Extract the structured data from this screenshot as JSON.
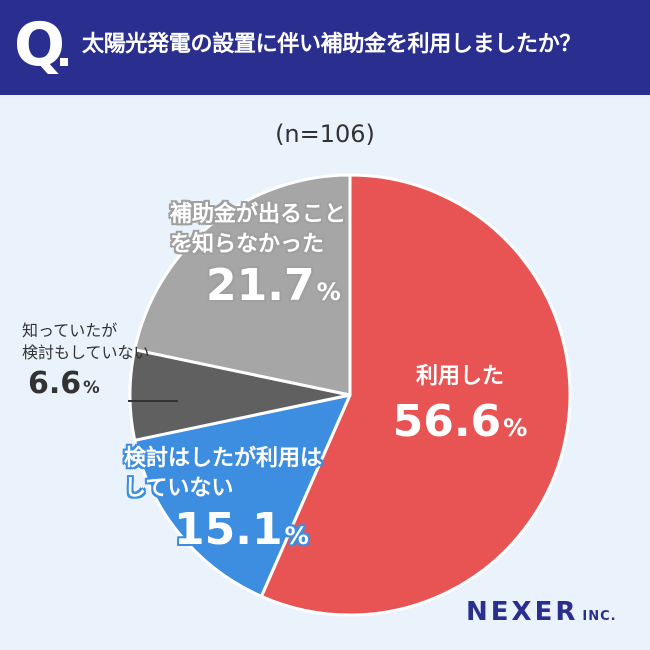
{
  "header": {
    "q_mark": "Q",
    "question": "太陽光発電の設置に伴い補助金を利用しましたか？"
  },
  "chart_data": {
    "type": "pie",
    "sample_size": "(n=106)",
    "slices": [
      {
        "label": "利用した",
        "value": 56.6,
        "value_text": "56.6",
        "color": "#e85453"
      },
      {
        "label": "検討はしたが利用はしていない",
        "value": 15.1,
        "value_text": "15.1",
        "color": "#3d8de0"
      },
      {
        "label": "知っていたが検討もしていない",
        "value": 6.6,
        "value_text": "6.6",
        "color": "#5f605f"
      },
      {
        "label": "補助金が出ることを知らなかった",
        "value": 21.7,
        "value_text": "21.7",
        "color": "#a6a6a6"
      }
    ],
    "unit": "%"
  },
  "label_lines": {
    "s0": [
      "利用した"
    ],
    "s1": [
      "検討はしたが利用は",
      "していない"
    ],
    "s2": [
      "知っていたが",
      "検討もしていない"
    ],
    "s3": [
      "補助金が出ること",
      "を知らなかった"
    ]
  },
  "logo": {
    "name": "NEXER",
    "suffix": "INC."
  }
}
